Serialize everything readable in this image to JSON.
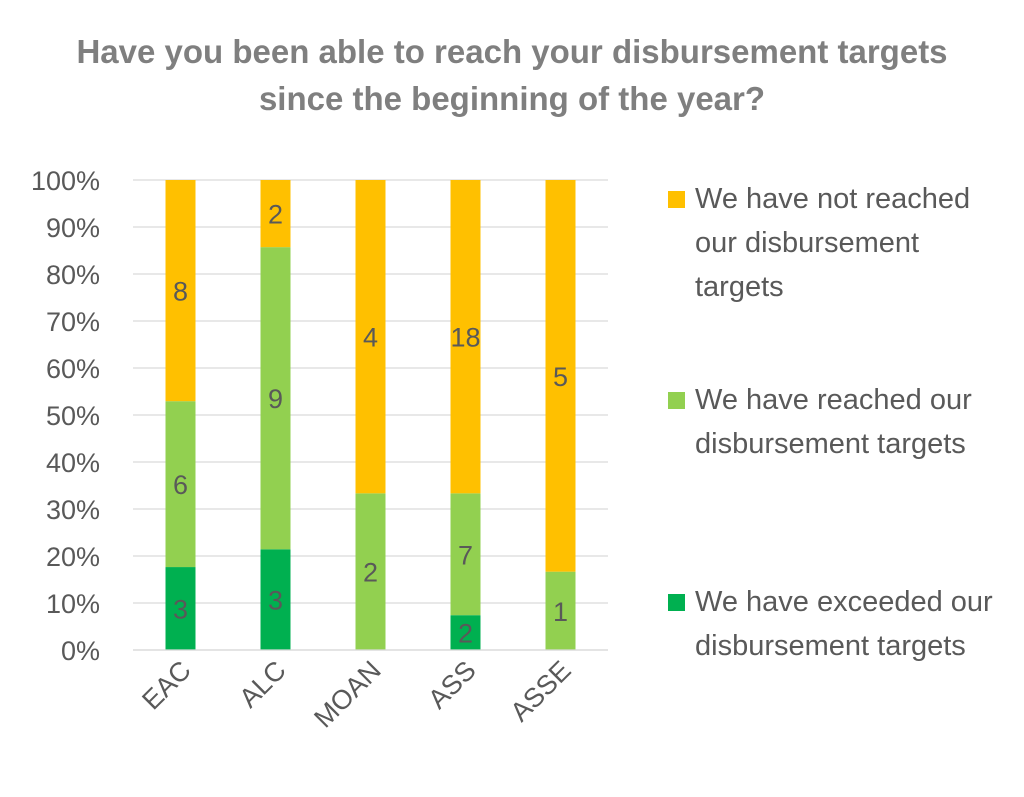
{
  "colors": {
    "not_reached": "#ffc000",
    "reached": "#92d050",
    "exceeded": "#00b050",
    "text": "#595959",
    "title": "#7f7f7f",
    "grid": "#d9d9d9"
  },
  "title_lines": [
    "Have you been able to reach your disbursement targets",
    "since the beginning of the year?"
  ],
  "chart_data": {
    "type": "bar",
    "stacked": true,
    "percent_stacked": true,
    "title": "Have you been able to reach your disbursement targets since the beginning of the year?",
    "categories": [
      "EAC",
      "ALC",
      "MOAN",
      "ASS",
      "ASSE"
    ],
    "series": [
      {
        "name": "We have exceeded our disbursement targets",
        "color": "#00b050",
        "values": [
          3,
          3,
          0,
          2,
          0
        ]
      },
      {
        "name": "We have reached our disbursement targets",
        "color": "#92d050",
        "values": [
          6,
          9,
          2,
          7,
          1
        ]
      },
      {
        "name": "We have not reached our disbursement targets",
        "color": "#ffc000",
        "values": [
          8,
          2,
          4,
          18,
          5
        ]
      }
    ],
    "y_ticks": [
      "0%",
      "10%",
      "20%",
      "30%",
      "40%",
      "50%",
      "60%",
      "70%",
      "80%",
      "90%",
      "100%"
    ],
    "ylim": [
      0,
      100
    ],
    "grid": true,
    "legend_position": "right"
  },
  "legend": [
    {
      "label": "We have not reached our disbursement targets",
      "color": "#ffc000"
    },
    {
      "label": "We have reached our disbursement targets",
      "color": "#92d050"
    },
    {
      "label": "We have exceeded our disbursement targets",
      "color": "#00b050"
    }
  ]
}
